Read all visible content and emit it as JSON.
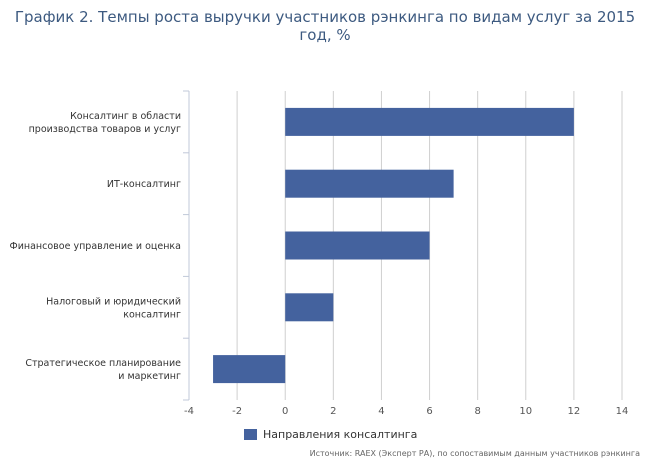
{
  "title": "График 2. Темпы роста выручки участников рэнкинга по видам услуг за 2015\nгод, %",
  "source": "Источник: RAEX (Эксперт РА), по сопоставимым данным участников рэнкинга",
  "colors": {
    "bar": "#44629e",
    "grid": "#cfcfcf",
    "axis": "#c0c8d8"
  },
  "chart_data": {
    "type": "bar",
    "orientation": "horizontal",
    "categories": [
      "Консалтинг в области производства товаров и услуг",
      "ИТ-консалтинг",
      "Финансовое управление и оценка",
      "Налоговый и юридический консалтинг",
      "Стратегическое планирование и маркетинг"
    ],
    "category_label_lines": [
      [
        "Консалтинг в области",
        "производства товаров и услуг"
      ],
      [
        "ИТ-консалтинг"
      ],
      [
        "Финансовое управление и оценка"
      ],
      [
        "Налоговый и юридический",
        "консалтинг"
      ],
      [
        "Стратегическое планирование",
        "и маркетинг"
      ]
    ],
    "series": [
      {
        "name": "Направления консалтинга",
        "values": [
          12,
          7,
          6,
          2,
          -3
        ]
      }
    ],
    "xlim": [
      -4,
      14
    ],
    "xticks": [
      -4,
      -2,
      0,
      2,
      4,
      6,
      8,
      10,
      12,
      14
    ],
    "grid": true,
    "legend": "bottom"
  }
}
